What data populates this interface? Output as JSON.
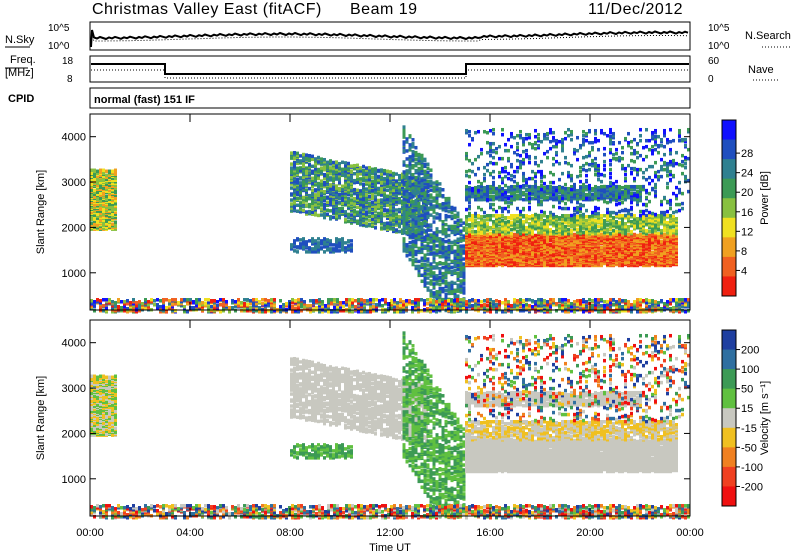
{
  "header": {
    "station": "Christmas Valley East (fitACF)",
    "beam": "Beam 19",
    "date": "11/Dec/2012"
  },
  "noise_panel": {
    "left_label": "N.Sky",
    "left_ticks": [
      "10^5",
      "10^0"
    ],
    "right_ticks": [
      "10^5",
      "10^0"
    ],
    "right_label": "N.Search"
  },
  "freq_panel": {
    "left_label_line1": "Freq.",
    "left_label_line2": "[MHz]",
    "left_ticks": [
      "18",
      "8"
    ],
    "right_ticks": [
      "60",
      "0"
    ],
    "right_label": "Nave"
  },
  "cpid": {
    "label": "CPID",
    "mode": "normal (fast) 151 IF"
  },
  "chart_data": [
    {
      "type": "heatmap",
      "name": "power",
      "ylabel": "Slant Range [km]",
      "yticks": [
        1000,
        2000,
        3000,
        4000
      ],
      "ylim": [
        180,
        4500
      ],
      "xlabel": "",
      "xticks_hours": [
        0,
        4,
        8,
        12,
        16,
        20,
        24
      ],
      "xlim": [
        0,
        24
      ],
      "colorbar": {
        "label": "Power [dB]",
        "ticks": [
          "4",
          "8",
          "12",
          "16",
          "20",
          "24",
          "28"
        ],
        "colors": [
          "#1010ff",
          "#1f4fbf",
          "#2f8090",
          "#3c9a55",
          "#88c040",
          "#f0e020",
          "#f0a020",
          "#f06020",
          "#f02010"
        ]
      }
    },
    {
      "type": "heatmap",
      "name": "velocity",
      "ylabel": "Slant Range [km]",
      "yticks": [
        1000,
        2000,
        3000,
        4000
      ],
      "ylim": [
        180,
        4500
      ],
      "xlabel": "Time UT",
      "xticks": [
        "00:00",
        "04:00",
        "08:00",
        "12:00",
        "16:00",
        "20:00",
        "00:00"
      ],
      "xticks_hours": [
        0,
        4,
        8,
        12,
        16,
        20,
        24
      ],
      "xlim": [
        0,
        24
      ],
      "colorbar": {
        "label": "Velocity [m s⁻¹]",
        "ticks": [
          "200",
          "100",
          "50",
          "15",
          "-15",
          "-50",
          "-100",
          "-200"
        ],
        "colors": [
          "#1f3fa0",
          "#2f6fa0",
          "#3c9a55",
          "#60c040",
          "#c8c8c0",
          "#f0c020",
          "#f08020",
          "#f04020",
          "#f01010"
        ]
      }
    }
  ]
}
